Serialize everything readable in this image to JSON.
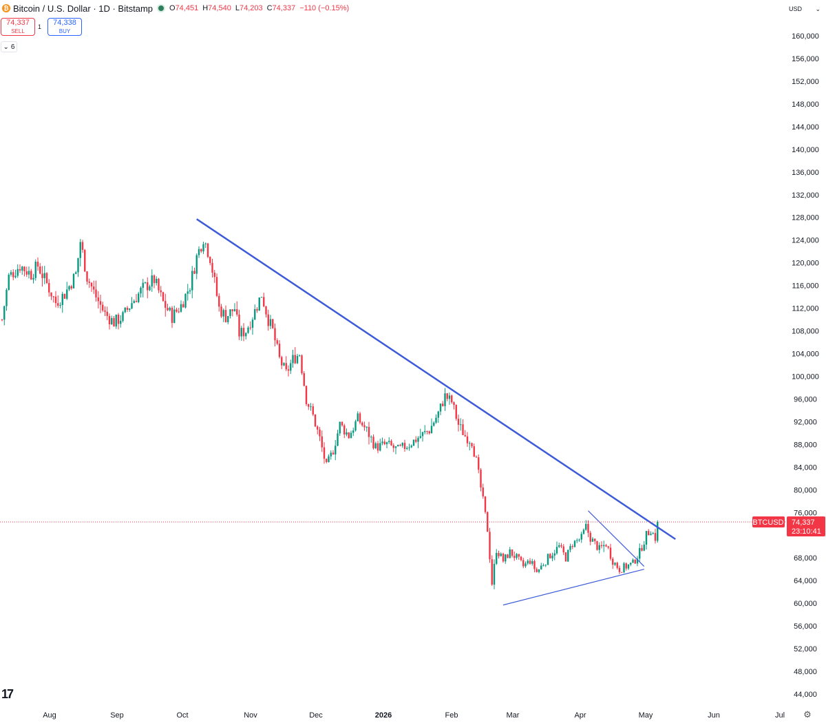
{
  "header": {
    "coin_symbol": "₿",
    "title": "Bitcoin / U.S. Dollar · 1D · Bitstamp",
    "open_key": "O",
    "open_val": "74,451",
    "high_key": "H",
    "high_val": "74,540",
    "low_key": "L",
    "low_val": "74,203",
    "close_key": "C",
    "close_val": "74,337",
    "change": "−110 (−0.15%)"
  },
  "trade": {
    "sell_price": "74,337",
    "sell_label": "SELL",
    "spread": "1",
    "buy_price": "74,338",
    "buy_label": "BUY"
  },
  "indicators_toggle": {
    "count": "6"
  },
  "currency": {
    "selected": "USD"
  },
  "logo_text": "17",
  "colors": {
    "up": "#089981",
    "down": "#f23645",
    "trendline": "#3d5bd9",
    "price_line": "#f23645"
  },
  "chart_data": {
    "type": "candlestick",
    "symbol": "BTCUSD",
    "title": "Bitcoin / U.S. Dollar · 1D · Bitstamp",
    "ylim": [
      44000,
      164000
    ],
    "y_ticks": [
      "160,000",
      "156,000",
      "152,000",
      "148,000",
      "144,000",
      "140,000",
      "136,000",
      "132,000",
      "128,000",
      "124,000",
      "120,000",
      "116,000",
      "112,000",
      "108,000",
      "104,000",
      "100,000",
      "96,000",
      "92,000",
      "88,000",
      "84,000",
      "80,000",
      "76,000",
      "68,000",
      "64,000",
      "60,000",
      "56,000",
      "52,000",
      "48,000",
      "44,000"
    ],
    "x_ticks": [
      "Aug",
      "Sep",
      "Oct",
      "Nov",
      "Dec",
      "2026",
      "Feb",
      "Mar",
      "Apr",
      "May",
      "Jun",
      "Jul"
    ],
    "last_price": 74337,
    "last_price_label": "74,337",
    "countdown": "23:10:41",
    "anchors": [
      {
        "d": 0,
        "p": 110000
      },
      {
        "d": 3,
        "p": 117500
      },
      {
        "d": 8,
        "p": 119500
      },
      {
        "d": 13,
        "p": 118000
      },
      {
        "d": 16,
        "p": 119500
      },
      {
        "d": 21,
        "p": 115500
      },
      {
        "d": 24,
        "p": 113000
      },
      {
        "d": 28,
        "p": 114500
      },
      {
        "d": 33,
        "p": 118000
      },
      {
        "d": 35,
        "p": 123800
      },
      {
        "d": 38,
        "p": 117500
      },
      {
        "d": 42,
        "p": 114000
      },
      {
        "d": 46,
        "p": 111000
      },
      {
        "d": 50,
        "p": 109500
      },
      {
        "d": 54,
        "p": 110500
      },
      {
        "d": 58,
        "p": 113000
      },
      {
        "d": 63,
        "p": 115500
      },
      {
        "d": 68,
        "p": 117000
      },
      {
        "d": 72,
        "p": 113000
      },
      {
        "d": 76,
        "p": 110500
      },
      {
        "d": 80,
        "p": 112500
      },
      {
        "d": 84,
        "p": 116000
      },
      {
        "d": 87,
        "p": 121000
      },
      {
        "d": 90,
        "p": 124500
      },
      {
        "d": 93,
        "p": 121000
      },
      {
        "d": 97,
        "p": 112000
      },
      {
        "d": 100,
        "p": 110500
      },
      {
        "d": 104,
        "p": 112000
      },
      {
        "d": 106,
        "p": 107500
      },
      {
        "d": 109,
        "p": 108000
      },
      {
        "d": 113,
        "p": 111500
      },
      {
        "d": 116,
        "p": 114500
      },
      {
        "d": 119,
        "p": 110000
      },
      {
        "d": 121,
        "p": 108000
      },
      {
        "d": 124,
        "p": 103000
      },
      {
        "d": 127,
        "p": 100500
      },
      {
        "d": 130,
        "p": 103000
      },
      {
        "d": 133,
        "p": 104000
      },
      {
        "d": 136,
        "p": 96000
      },
      {
        "d": 139,
        "p": 93000
      },
      {
        "d": 142,
        "p": 89000
      },
      {
        "d": 145,
        "p": 84000
      },
      {
        "d": 148,
        "p": 87000
      },
      {
        "d": 151,
        "p": 91500
      },
      {
        "d": 155,
        "p": 89500
      },
      {
        "d": 159,
        "p": 92500
      },
      {
        "d": 163,
        "p": 90500
      },
      {
        "d": 167,
        "p": 87500
      },
      {
        "d": 172,
        "p": 88000
      },
      {
        "d": 177,
        "p": 87000
      },
      {
        "d": 182,
        "p": 88000
      },
      {
        "d": 187,
        "p": 89500
      },
      {
        "d": 191,
        "p": 90500
      },
      {
        "d": 195,
        "p": 93500
      },
      {
        "d": 198,
        "p": 96500
      },
      {
        "d": 201,
        "p": 95500
      },
      {
        "d": 204,
        "p": 91500
      },
      {
        "d": 207,
        "p": 89500
      },
      {
        "d": 210,
        "p": 88500
      },
      {
        "d": 212,
        "p": 85000
      },
      {
        "d": 215,
        "p": 78000
      },
      {
        "d": 217,
        "p": 73000
      },
      {
        "d": 219,
        "p": 63500
      },
      {
        "d": 221,
        "p": 69500
      },
      {
        "d": 224,
        "p": 67500
      },
      {
        "d": 227,
        "p": 69000
      },
      {
        "d": 230,
        "p": 68000
      },
      {
        "d": 233,
        "p": 66500
      },
      {
        "d": 236,
        "p": 67500
      },
      {
        "d": 239,
        "p": 65500
      },
      {
        "d": 242,
        "p": 67000
      },
      {
        "d": 245,
        "p": 68500
      },
      {
        "d": 249,
        "p": 70000
      },
      {
        "d": 252,
        "p": 68000
      },
      {
        "d": 255,
        "p": 70500
      },
      {
        "d": 259,
        "p": 71500
      },
      {
        "d": 261,
        "p": 73500
      },
      {
        "d": 263,
        "p": 71500
      },
      {
        "d": 267,
        "p": 69500
      },
      {
        "d": 270,
        "p": 70500
      },
      {
        "d": 273,
        "p": 67500
      },
      {
        "d": 276,
        "p": 66000
      },
      {
        "d": 279,
        "p": 66500
      },
      {
        "d": 282,
        "p": 67000
      },
      {
        "d": 285,
        "p": 69000
      },
      {
        "d": 288,
        "p": 72000
      },
      {
        "d": 290,
        "p": 73000
      },
      {
        "d": 292,
        "p": 71500
      },
      {
        "d": 293,
        "p": 74337
      }
    ],
    "trendlines": [
      {
        "name": "main-downtrend",
        "from": {
          "d": 87,
          "p": 127700
        },
        "to": {
          "d": 301,
          "p": 71300
        }
      },
      {
        "name": "triangle-support",
        "from": {
          "d": 224,
          "p": 59700
        },
        "to": {
          "d": 287,
          "p": 66000
        }
      },
      {
        "name": "triangle-resistance",
        "from": {
          "d": 262,
          "p": 76300
        },
        "to": {
          "d": 287,
          "p": 66500
        }
      }
    ]
  }
}
